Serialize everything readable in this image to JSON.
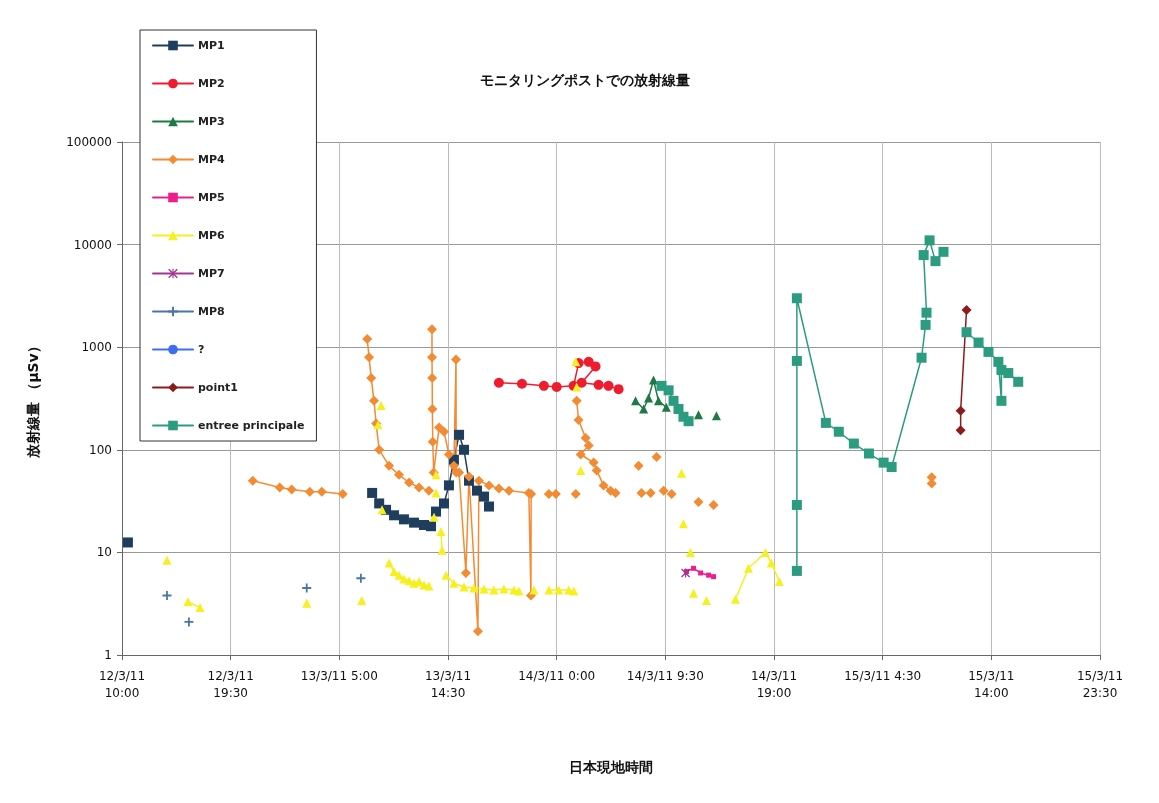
{
  "chart_data": {
    "type": "line",
    "title": "モニタリングポストでの放射線量",
    "xlabel": "日本現地時間",
    "ylabel": "放射線量 （μSv）",
    "log": "y",
    "grid": true,
    "legend": "top left",
    "xlim": [
      "--03-12T10:00",
      "--03-15T23:30"
    ],
    "xticks": [
      {
        "value": "--03-12T10:00",
        "label": "12/3/11\n10:00"
      },
      {
        "value": "--03-12T19:30",
        "label": "12/3/11\n19:30"
      },
      {
        "value": "--03-13T05:00",
        "label": "13/3/11 5:00"
      },
      {
        "value": "--03-13T14:30",
        "label": "13/3/11\n14:30"
      },
      {
        "value": "--03-14T00:00",
        "label": "14/3/11 0:00"
      },
      {
        "value": "--03-14T09:30",
        "label": "14/3/11 9:30"
      },
      {
        "value": "--03-14T19:00",
        "label": "14/3/11\n19:00"
      },
      {
        "value": "--03-15T04:30",
        "label": "15/3/11 4:30"
      },
      {
        "value": "--03-15T14:00",
        "label": "15/3/11\n14:00"
      },
      {
        "value": "--03-15T23:30",
        "label": "15/3/11\n23:30"
      }
    ],
    "ylim": [
      1,
      100000
    ],
    "yticks": [
      1,
      10,
      100,
      1000,
      10000,
      100000
    ],
    "series": [
      {
        "name": "MP1",
        "color": "#1f3d5c",
        "marker": "square",
        "x": [
          "--03-12T10:31",
          null,
          "--03-13T07:52",
          "--03-13T08:29",
          "--03-13T09:05",
          "--03-13T09:47",
          "--03-13T10:39",
          "--03-13T11:32",
          "--03-13T12:24",
          "--03-13T13:01",
          "--03-13T13:27",
          "--03-13T14:09",
          "--03-13T14:35",
          "--03-13T15:01",
          "--03-13T15:28",
          "--03-13T15:54",
          "--03-13T16:20",
          "--03-13T17:02",
          "--03-13T17:39",
          "--03-13T18:05"
        ],
        "values": [
          12.5,
          null,
          38,
          30,
          26,
          23,
          21,
          19.5,
          18.5,
          18,
          25,
          30,
          45,
          80,
          140,
          100,
          50,
          40,
          35,
          28
        ]
      },
      {
        "name": "MP2",
        "color": "#ee1c2e",
        "marker": "circle",
        "x": [
          "--03-13T18:57",
          "--03-13T20:58",
          "--03-13T22:53",
          "--03-14T00:00",
          "--03-14T01:29",
          "--03-14T01:55",
          "--03-14T02:48",
          "--03-14T03:24",
          "--03-14T02:11",
          "--03-14T03:40",
          "--03-14T04:32",
          "--03-14T05:25"
        ],
        "values": [
          450,
          440,
          420,
          410,
          420,
          700,
          720,
          650,
          450,
          430,
          420,
          390
        ]
      },
      {
        "name": "MP3",
        "color": "#1d7a45",
        "marker": "triangle",
        "x": [
          "--03-14T06:54",
          "--03-14T07:36",
          "--03-14T08:02",
          "--03-14T08:28",
          "--03-14T08:54",
          "--03-14T09:35",
          null,
          "--03-14T12:24",
          null,
          "--03-14T13:58"
        ],
        "values": [
          300,
          250,
          320,
          480,
          300,
          260,
          null,
          220,
          null,
          215
        ]
      },
      {
        "name": "MP4",
        "color": "#f38b32",
        "marker": "diamond",
        "x": [
          "--03-12T21:26",
          "--03-12T23:47",
          "--03-13T00:50",
          "--03-13T02:25",
          "--03-13T03:28",
          "--03-13T05:18",
          null,
          "--03-13T07:26",
          "--03-13T07:36",
          "--03-13T07:47",
          "--03-13T08:02",
          "--03-13T08:13",
          "--03-13T08:29",
          "--03-13T09:21",
          "--03-13T10:13",
          "--03-13T11:06",
          "--03-13T11:58",
          "--03-13T12:50",
          null,
          "--03-13T13:06",
          "--03-13T13:06",
          "--03-13T13:07",
          "--03-13T13:08",
          "--03-13T13:10",
          "--03-13T13:15",
          "--03-13T13:43",
          "--03-13T14:09",
          "--03-13T14:35",
          "--03-13T15:01",
          "--03-13T15:12",
          "--03-13T15:13",
          "--03-13T15:28",
          "--03-13T16:04",
          "--03-13T16:20",
          "--03-13T17:07",
          "--03-13T17:12",
          "--03-13T18:05",
          "--03-13T18:57",
          "--03-13T19:50",
          "--03-13T21:34",
          "--03-13T21:45",
          "--03-13T21:46",
          null,
          "--03-13T23:19",
          "--03-13T23:56",
          null,
          "--03-14T01:40",
          null,
          "--03-14T01:45",
          "--03-14T01:55",
          "--03-14T02:32",
          "--03-14T02:48",
          "--03-14T02:06",
          "--03-14T03:14",
          "--03-14T03:30",
          "--03-14T04:06",
          "--03-14T04:43",
          "--03-14T05:09",
          null,
          "--03-14T07:10",
          null,
          "--03-14T07:25",
          null,
          "--03-14T08:13",
          null,
          "--03-14T08:44",
          null,
          "--03-14T09:21",
          null,
          "--03-14T10:03",
          null,
          "--03-14T12:24",
          null,
          "--03-14T13:43",
          null,
          "--03-15T08:47",
          "--03-15T08:47"
        ],
        "values": [
          50,
          43,
          41,
          39,
          39,
          37,
          null,
          1200,
          800,
          500,
          300,
          180,
          100,
          70,
          57,
          48,
          43,
          40,
          null,
          1500,
          800,
          500,
          250,
          120,
          60,
          165,
          150,
          90,
          70,
          760,
          60,
          60,
          6.3,
          55,
          1.7,
          50,
          45,
          42,
          40,
          38,
          3.8,
          37,
          null,
          37,
          37,
          null,
          37,
          null,
          300,
          195,
          130,
          110,
          90,
          75,
          63,
          45,
          40,
          38,
          null,
          70,
          null,
          38,
          null,
          38,
          null,
          85,
          null,
          40,
          null,
          37,
          null,
          31,
          null,
          29,
          null,
          54,
          47
        ]
      },
      {
        "name": "MP5",
        "color": "#ec1e8c",
        "marker": "square",
        "x": [
          "--03-14T11:21",
          "--03-14T11:58",
          "--03-14T12:35",
          "--03-14T13:17",
          "--03-14T13:43"
        ],
        "values": [
          6.5,
          7,
          6.3,
          6,
          5.8
        ]
      },
      {
        "name": "MP6",
        "color": "#f5f01e",
        "marker": "triangle",
        "x": [
          "--03-12T13:56",
          null,
          "--03-12T15:46",
          "--03-12T16:49",
          null,
          "--03-13T02:09",
          null,
          "--03-13T06:58",
          null,
          "--03-13T08:23",
          null,
          "--03-13T08:39",
          null,
          "--03-13T08:44",
          null,
          "--03-13T09:21",
          "--03-13T09:47",
          "--03-13T10:13",
          "--03-13T10:39",
          "--03-13T11:06",
          "--03-13T11:32",
          "--03-13T11:58",
          "--03-13T12:24",
          "--03-13T12:50",
          null,
          "--03-13T13:17",
          null,
          "--03-13T13:27",
          null,
          "--03-13T13:27",
          null,
          "--03-13T13:53",
          "--03-13T13:59",
          null,
          "--03-13T14:20",
          "--03-13T15:01",
          "--03-13T15:54",
          "--03-13T16:46",
          "--03-13T17:39",
          "--03-13T18:31",
          "--03-13T19:23",
          "--03-13T20:16",
          "--03-13T20:42",
          null,
          "--03-13T22:01",
          null,
          "--03-13T23:19",
          "--03-14T00:10",
          "--03-14T01:03",
          "--03-14T01:30",
          null,
          "--03-14T01:40",
          null,
          "--03-14T01:45",
          null,
          "--03-14T02:06",
          null,
          "--03-14T10:55",
          null,
          "--03-14T11:05",
          null,
          "--03-14T11:42",
          null,
          "--03-14T11:58",
          null,
          "--03-14T13:06",
          null,
          "--03-14T15:38",
          "--03-14T16:46",
          "--03-14T18:15",
          "--03-14T18:46",
          "--03-14T19:28"
        ],
        "values": [
          8.4,
          null,
          3.3,
          2.9,
          null,
          3.2,
          null,
          3.4,
          null,
          175,
          null,
          270,
          null,
          26,
          null,
          7.9,
          6.5,
          6,
          5.5,
          5.3,
          5,
          5.2,
          4.8,
          4.7,
          null,
          22,
          null,
          57,
          null,
          38,
          null,
          16,
          10.5,
          null,
          6,
          5,
          4.6,
          4.5,
          4.4,
          4.3,
          4.4,
          4.3,
          4.2,
          null,
          4.3,
          null,
          4.3,
          4.3,
          4.3,
          4.2,
          null,
          720,
          null,
          410,
          null,
          63,
          null,
          59,
          null,
          19,
          null,
          10,
          null,
          4,
          null,
          3.4,
          null,
          3.5,
          7,
          10,
          7.9,
          5.2
        ]
      },
      {
        "name": "MP7",
        "color": "#a3358f",
        "marker": "star",
        "x": [
          "--03-14T11:16"
        ],
        "values": [
          6.3
        ]
      },
      {
        "name": "MP8",
        "color": "#4b74a8",
        "marker": "cross",
        "x": [
          "--03-12T13:56",
          null,
          "--03-12T15:51",
          null,
          "--03-13T02:09",
          null,
          "--03-13T06:53"
        ],
        "values": [
          3.8,
          null,
          2.1,
          null,
          4.5,
          null,
          5.6
        ]
      },
      {
        "name": "?",
        "color": "#3b6ff0",
        "marker": "none"
      },
      {
        "name": "point1",
        "color": "#8c1c1c",
        "marker": "diamond",
        "x": [
          "--03-15T11:19",
          "--03-15T11:19",
          "--03-15T11:50"
        ],
        "values": [
          155,
          240,
          2300
        ]
      },
      {
        "name": "entree principale",
        "color": "#2c9c80",
        "marker": "square",
        "x": [
          "--03-14T09:10",
          "--03-14T09:47",
          "--03-14T10:13",
          "--03-14T10:39",
          "--03-14T11:05",
          "--03-14T11:32",
          null,
          "--03-14T21:00",
          "--03-14T21:00",
          "--03-14T21:00",
          "--03-14T21:00",
          "--03-14T23:32",
          "--03-15T00:40",
          "--03-15T01:59",
          "--03-15T03:18",
          "--03-15T04:35",
          "--03-15T05:17",
          "--03-15T07:54",
          "--03-15T08:15",
          "--03-15T08:20",
          "--03-15T08:05",
          "--03-15T08:36",
          "--03-15T09:07",
          "--03-15T09:49",
          null,
          "--03-15T11:50",
          "--03-15T12:53",
          "--03-15T13:45",
          "--03-15T14:37",
          "--03-15T14:53",
          "--03-15T14:53",
          "--03-15T15:29",
          "--03-15T16:21"
        ],
        "values": [
          420,
          380,
          300,
          250,
          210,
          190,
          null,
          6.6,
          29,
          735,
          3000,
          183,
          150,
          115,
          92,
          75,
          68,
          790,
          1650,
          2170,
          7900,
          11000,
          6900,
          8500,
          null,
          1400,
          1110,
          900,
          720,
          300,
          600,
          560,
          460
        ]
      }
    ]
  }
}
